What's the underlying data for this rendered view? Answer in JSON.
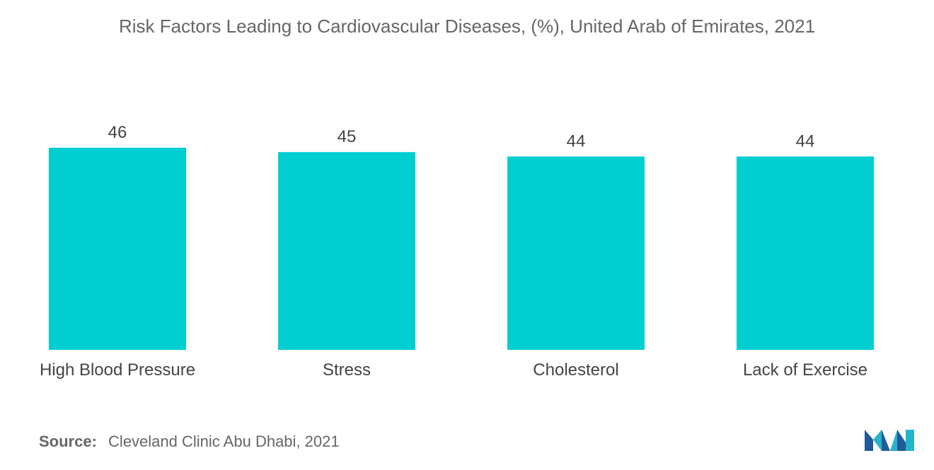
{
  "chart_data": {
    "type": "bar",
    "title": "Risk Factors Leading to Cardiovascular Diseases, (%), United Arab of Emirates, 2021",
    "categories": [
      "High Blood Pressure",
      "Stress",
      "Cholesterol",
      "Lack of Exercise"
    ],
    "values": [
      46,
      45,
      44,
      44
    ],
    "data_labels": [
      "46",
      "45",
      "44",
      "44"
    ],
    "xlabel": "",
    "ylabel": "",
    "ylim": [
      0,
      46
    ],
    "grid": false,
    "legend": "none",
    "bar_color": "#00CED1"
  },
  "source": {
    "label": "Source:",
    "text": "Cleveland Clinic Abu Dhabi, 2021"
  },
  "logo": {
    "icon": "mordor-intelligence-logo-icon",
    "colors": [
      "#1F5B9A",
      "#27B3C9"
    ]
  }
}
